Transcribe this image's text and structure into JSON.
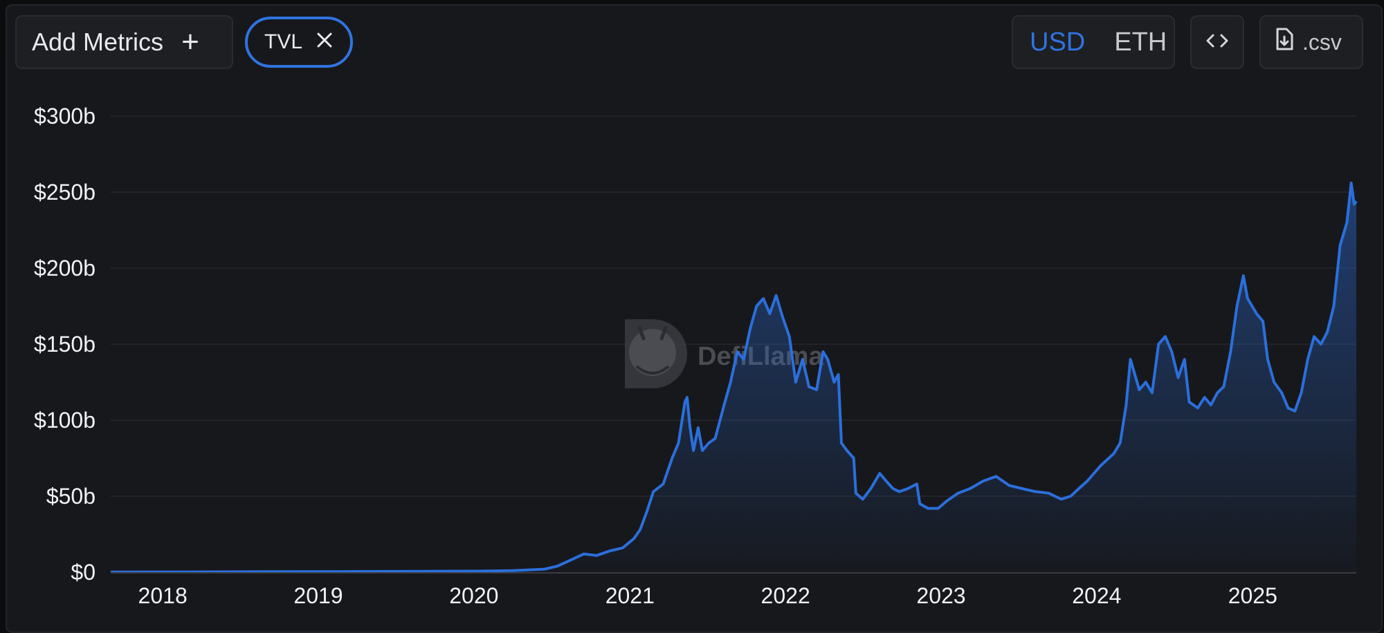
{
  "toolbar": {
    "add_metrics_label": "Add Metrics",
    "add_icon": "plus-icon",
    "metric_chip_label": "TVL",
    "remove_icon": "close-icon",
    "currency_options": [
      "USD",
      "ETH"
    ],
    "currency_selected": "USD",
    "embed_icon": "code-icon",
    "csv_icon": "file-download-icon",
    "csv_label": ".csv"
  },
  "watermark": {
    "text": "DefiLlama",
    "icon": "llama-logo-icon"
  },
  "colors": {
    "accent": "#2f74e0",
    "background": "#17181c",
    "line": "#2b6fdb"
  },
  "chart_data": {
    "type": "area",
    "title": "",
    "xlabel": "",
    "ylabel": "",
    "ylim": [
      0,
      300
    ],
    "xlim": [
      "2017-09-01",
      "2025-09-01"
    ],
    "y_ticks": [
      "$0",
      "$50b",
      "$100b",
      "$150b",
      "$200b",
      "$250b",
      "$300b"
    ],
    "x_ticks": [
      "2018",
      "2019",
      "2020",
      "2021",
      "2022",
      "2023",
      "2024",
      "2025"
    ],
    "grid": true,
    "legend": "none",
    "series": [
      {
        "name": "TVL",
        "points": [
          [
            "2017-09-01",
            0.1
          ],
          [
            "2018-03-01",
            0.2
          ],
          [
            "2018-09-01",
            0.3
          ],
          [
            "2019-03-01",
            0.4
          ],
          [
            "2019-09-01",
            0.6
          ],
          [
            "2020-01-01",
            0.7
          ],
          [
            "2020-04-01",
            1.0
          ],
          [
            "2020-06-15",
            2
          ],
          [
            "2020-07-15",
            4
          ],
          [
            "2020-08-15",
            8
          ],
          [
            "2020-09-15",
            12
          ],
          [
            "2020-10-15",
            11
          ],
          [
            "2020-11-15",
            14
          ],
          [
            "2020-12-15",
            16
          ],
          [
            "2021-01-10",
            22
          ],
          [
            "2021-01-25",
            28
          ],
          [
            "2021-02-10",
            40
          ],
          [
            "2021-02-25",
            53
          ],
          [
            "2021-03-20",
            58
          ],
          [
            "2021-04-10",
            75
          ],
          [
            "2021-04-25",
            85
          ],
          [
            "2021-05-10",
            112
          ],
          [
            "2021-05-15",
            115
          ],
          [
            "2021-05-22",
            95
          ],
          [
            "2021-05-30",
            80
          ],
          [
            "2021-06-10",
            95
          ],
          [
            "2021-06-20",
            80
          ],
          [
            "2021-07-05",
            85
          ],
          [
            "2021-07-20",
            88
          ],
          [
            "2021-08-10",
            110
          ],
          [
            "2021-08-25",
            125
          ],
          [
            "2021-09-10",
            145
          ],
          [
            "2021-09-25",
            140
          ],
          [
            "2021-10-10",
            160
          ],
          [
            "2021-10-25",
            175
          ],
          [
            "2021-11-10",
            180
          ],
          [
            "2021-11-25",
            170
          ],
          [
            "2021-12-10",
            182
          ],
          [
            "2021-12-25",
            168
          ],
          [
            "2022-01-10",
            155
          ],
          [
            "2022-01-25",
            125
          ],
          [
            "2022-02-10",
            140
          ],
          [
            "2022-02-25",
            122
          ],
          [
            "2022-03-15",
            120
          ],
          [
            "2022-03-30",
            145
          ],
          [
            "2022-04-10",
            140
          ],
          [
            "2022-04-25",
            125
          ],
          [
            "2022-05-05",
            130
          ],
          [
            "2022-05-12",
            85
          ],
          [
            "2022-05-25",
            80
          ],
          [
            "2022-06-10",
            75
          ],
          [
            "2022-06-15",
            52
          ],
          [
            "2022-07-01",
            48
          ],
          [
            "2022-07-20",
            55
          ],
          [
            "2022-08-10",
            65
          ],
          [
            "2022-08-25",
            60
          ],
          [
            "2022-09-10",
            55
          ],
          [
            "2022-09-25",
            53
          ],
          [
            "2022-10-15",
            55
          ],
          [
            "2022-11-05",
            58
          ],
          [
            "2022-11-12",
            45
          ],
          [
            "2022-12-01",
            42
          ],
          [
            "2022-12-25",
            42
          ],
          [
            "2023-01-15",
            47
          ],
          [
            "2023-02-10",
            52
          ],
          [
            "2023-03-10",
            55
          ],
          [
            "2023-04-10",
            60
          ],
          [
            "2023-05-10",
            63
          ],
          [
            "2023-06-10",
            57
          ],
          [
            "2023-07-10",
            55
          ],
          [
            "2023-08-10",
            53
          ],
          [
            "2023-09-10",
            52
          ],
          [
            "2023-10-10",
            48
          ],
          [
            "2023-11-01",
            50
          ],
          [
            "2023-11-20",
            55
          ],
          [
            "2023-12-10",
            60
          ],
          [
            "2024-01-10",
            70
          ],
          [
            "2024-02-10",
            78
          ],
          [
            "2024-02-25",
            85
          ],
          [
            "2024-03-10",
            110
          ],
          [
            "2024-03-20",
            140
          ],
          [
            "2024-04-10",
            120
          ],
          [
            "2024-04-25",
            125
          ],
          [
            "2024-05-10",
            118
          ],
          [
            "2024-05-25",
            150
          ],
          [
            "2024-06-10",
            155
          ],
          [
            "2024-06-25",
            145
          ],
          [
            "2024-07-10",
            128
          ],
          [
            "2024-07-25",
            140
          ],
          [
            "2024-08-05",
            112
          ],
          [
            "2024-08-25",
            108
          ],
          [
            "2024-09-10",
            115
          ],
          [
            "2024-09-25",
            110
          ],
          [
            "2024-10-10",
            118
          ],
          [
            "2024-10-25",
            122
          ],
          [
            "2024-11-10",
            145
          ],
          [
            "2024-11-25",
            175
          ],
          [
            "2024-12-10",
            195
          ],
          [
            "2024-12-20",
            180
          ],
          [
            "2025-01-10",
            170
          ],
          [
            "2025-01-25",
            165
          ],
          [
            "2025-02-05",
            140
          ],
          [
            "2025-02-20",
            125
          ],
          [
            "2025-03-10",
            118
          ],
          [
            "2025-03-25",
            108
          ],
          [
            "2025-04-10",
            106
          ],
          [
            "2025-04-25",
            118
          ],
          [
            "2025-05-10",
            140
          ],
          [
            "2025-05-25",
            155
          ],
          [
            "2025-06-10",
            150
          ],
          [
            "2025-06-25",
            158
          ],
          [
            "2025-07-10",
            175
          ],
          [
            "2025-07-25",
            215
          ],
          [
            "2025-08-10",
            230
          ],
          [
            "2025-08-20",
            256
          ],
          [
            "2025-08-27",
            242
          ],
          [
            "2025-09-01",
            244
          ]
        ]
      }
    ]
  }
}
